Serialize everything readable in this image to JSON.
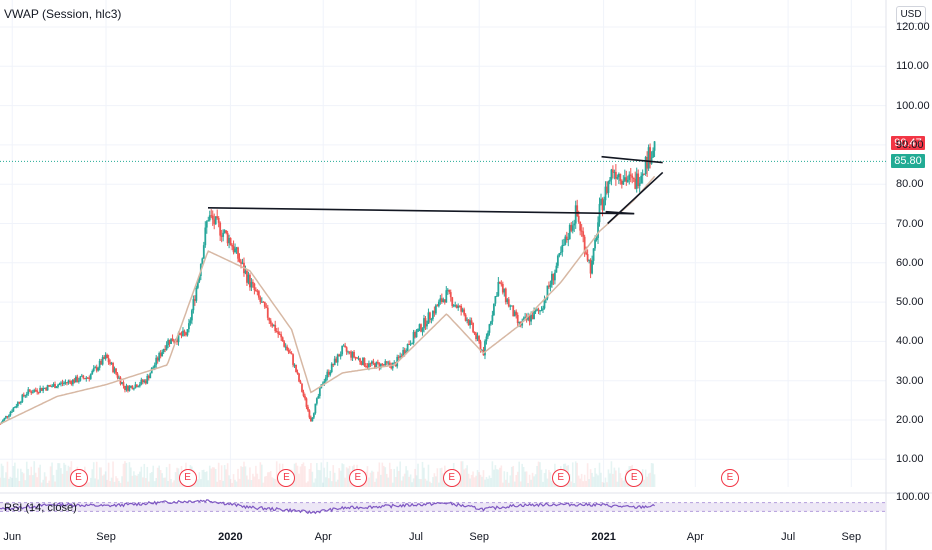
{
  "indicator": {
    "label": "VWAP (Session, hlc3)"
  },
  "rsi": {
    "label": "RSI (14, close)",
    "level_label": "100.00"
  },
  "axis": {
    "currency": "USD"
  },
  "price_badges": [
    {
      "text": "90.47",
      "color": "#f23645"
    },
    {
      "text": "85.80",
      "color": "#22ab94"
    }
  ],
  "chart_data": {
    "type": "line",
    "title": "",
    "subtitle": "",
    "y_tick_labels": [
      "120.00",
      "110.00",
      "100.00",
      "90.00",
      "80.00",
      "70.00",
      "60.00",
      "50.00",
      "40.00",
      "30.00",
      "20.00",
      "10.00"
    ],
    "y_ticks": [
      120,
      110,
      100,
      90,
      80,
      70,
      60,
      50,
      40,
      30,
      20,
      10
    ],
    "ylim": [
      0,
      122
    ],
    "x_tick_labels": [
      "Jun",
      "Sep",
      "2020",
      "Apr",
      "Jul",
      "Sep",
      "2021",
      "Apr",
      "Jul",
      "Sep"
    ],
    "x_ticks": [
      "2019-06-01",
      "2019-09-01",
      "2020-01-01",
      "2020-04-01",
      "2020-07-01",
      "2020-09-01",
      "2021-01-01",
      "2021-04-01",
      "2021-07-01",
      "2021-09-01"
    ],
    "x_bold": [
      "2020",
      "2021"
    ],
    "xlim": [
      "2019-05-20",
      "2021-10-05"
    ],
    "series": [
      {
        "role": "price",
        "x": [
          "2019-05-20",
          "2019-06-15",
          "2019-07-15",
          "2019-08-15",
          "2019-09-01",
          "2019-09-20",
          "2019-10-10",
          "2019-10-31",
          "2019-11-20",
          "2019-12-01",
          "2019-12-10",
          "2019-12-31",
          "2020-01-20",
          "2020-02-10",
          "2020-03-01",
          "2020-03-20",
          "2020-04-01",
          "2020-04-20",
          "2020-05-15",
          "2020-06-10",
          "2020-06-25",
          "2020-07-10",
          "2020-07-31",
          "2020-08-20",
          "2020-09-05",
          "2020-09-20",
          "2020-10-10",
          "2020-10-31",
          "2020-11-20",
          "2020-12-05",
          "2020-12-20",
          "2020-12-28",
          "2021-01-10",
          "2021-01-31",
          "2021-02-10",
          "2021-02-20"
        ],
        "y": [
          19,
          27,
          29,
          31,
          36,
          28,
          30,
          40,
          42,
          57,
          72,
          66,
          55,
          45,
          36,
          20,
          30,
          38,
          34,
          34,
          40,
          45,
          52,
          46,
          37,
          55,
          44,
          48,
          62,
          73,
          58,
          73,
          84,
          80,
          85,
          90
        ],
        "colors": {
          "up": "#26a69a",
          "down": "#ef5350"
        }
      },
      {
        "role": "moving-average",
        "x": [
          "2019-05-20",
          "2019-07-15",
          "2019-09-01",
          "2019-10-31",
          "2019-12-10",
          "2020-01-20",
          "2020-03-01",
          "2020-03-20",
          "2020-04-20",
          "2020-06-10",
          "2020-07-31",
          "2020-09-05",
          "2020-10-10",
          "2020-11-20",
          "2020-12-28",
          "2021-01-31",
          "2021-02-20"
        ],
        "y": [
          19,
          26,
          29,
          34,
          63,
          58,
          43,
          27,
          32,
          34,
          47,
          37,
          44,
          55,
          68,
          76,
          82
        ],
        "color": "#d7b8a4"
      }
    ],
    "horizontal_lines": [
      {
        "y": 85.8,
        "color": "#22ab94",
        "style": "dotted"
      }
    ],
    "trendlines": [
      {
        "x1": "2019-12-10",
        "y1": 74,
        "x2": "2021-01-31",
        "y2": 72.5
      },
      {
        "x1": "2020-12-30",
        "y1": 87,
        "x2": "2021-02-28",
        "y2": 85.5
      },
      {
        "x1": "2021-01-05",
        "y1": 70,
        "x2": "2021-02-28",
        "y2": 83
      },
      {
        "x1": "2021-01-03",
        "y1": 73,
        "x2": "2021-01-31",
        "y2": 72.5
      }
    ],
    "earnings_markers": [
      {
        "x": "2019-08-05",
        "label": "E"
      },
      {
        "x": "2019-11-20",
        "label": "E"
      },
      {
        "x": "2020-02-25",
        "label": "E"
      },
      {
        "x": "2020-05-05",
        "label": "E"
      },
      {
        "x": "2020-08-05",
        "label": "E"
      },
      {
        "x": "2020-11-20",
        "label": "E"
      },
      {
        "x": "2021-01-31",
        "label": "E"
      },
      {
        "x": "2021-05-05",
        "label": "E"
      }
    ],
    "rsi_series": {
      "x": [
        "2019-05-20",
        "2019-07-15",
        "2019-09-01",
        "2019-10-31",
        "2019-12-10",
        "2020-01-20",
        "2020-03-01",
        "2020-03-20",
        "2020-04-20",
        "2020-06-10",
        "2020-07-31",
        "2020-09-05",
        "2020-10-10",
        "2020-11-20",
        "2020-12-28",
        "2021-01-31",
        "2021-02-20"
      ],
      "y": [
        40,
        62,
        55,
        72,
        80,
        48,
        35,
        25,
        45,
        55,
        68,
        40,
        58,
        62,
        60,
        48,
        55
      ],
      "color": "#7e57c2",
      "band": [
        30,
        70
      ],
      "band_color": "#ede7f6"
    },
    "grid": true,
    "legend": "none"
  }
}
